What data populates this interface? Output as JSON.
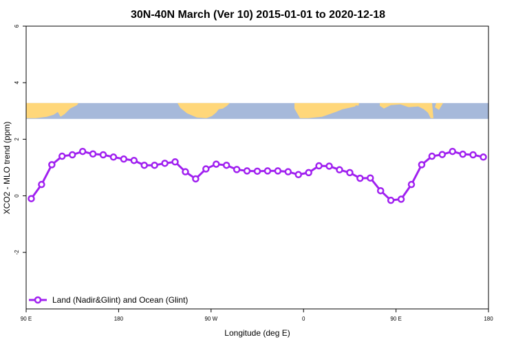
{
  "chart_data": {
    "type": "line",
    "title": "30N-40N March (Ver 10)   2015-01-01 to 2020-12-18",
    "xlabel": "Longitude (deg E)",
    "ylabel": "XCO2 - MLO trend (ppm)",
    "xlim": [
      90,
      540
    ],
    "ylim": [
      -4,
      6
    ],
    "x_ticks": [
      {
        "value": 90,
        "label": "90 E"
      },
      {
        "value": 180,
        "label": "180"
      },
      {
        "value": 270,
        "label": "90 W"
      },
      {
        "value": 360,
        "label": "0"
      },
      {
        "value": 450,
        "label": "90 E"
      },
      {
        "value": 540,
        "label": "180"
      }
    ],
    "y_ticks": [
      {
        "value": -2,
        "label": "-2"
      },
      {
        "value": 0,
        "label": "0"
      },
      {
        "value": 2,
        "label": "2"
      },
      {
        "value": 4,
        "label": "4"
      },
      {
        "value": 6,
        "label": "6"
      }
    ],
    "grid": false,
    "legend_position": "bottom-left",
    "series": [
      {
        "name": "Land (Nadir&Glint) and Ocean (Glint)",
        "color": "#a020f0",
        "marker": "open-circle",
        "x": [
          95,
          105,
          115,
          125,
          135,
          145,
          155,
          165,
          175,
          185,
          195,
          205,
          215,
          225,
          235,
          245,
          255,
          265,
          275,
          285,
          295,
          305,
          315,
          325,
          335,
          345,
          355,
          365,
          375,
          385,
          395,
          405,
          415,
          425,
          435,
          445,
          455,
          465,
          475,
          485,
          495,
          505,
          515,
          525,
          535
        ],
        "y": [
          -0.1,
          0.4,
          1.1,
          1.4,
          1.45,
          1.57,
          1.48,
          1.45,
          1.37,
          1.3,
          1.25,
          1.08,
          1.08,
          1.15,
          1.2,
          0.85,
          0.6,
          0.95,
          1.12,
          1.08,
          0.93,
          0.88,
          0.87,
          0.88,
          0.88,
          0.85,
          0.75,
          0.82,
          1.06,
          1.05,
          0.92,
          0.82,
          0.62,
          0.63,
          0.18,
          -0.16,
          -0.12,
          0.4,
          1.1,
          1.4,
          1.46,
          1.57,
          1.47,
          1.45,
          1.37
        ]
      }
    ],
    "map_strip": {
      "y_range": [
        2.72,
        3.28
      ],
      "ocean_color": "#a6b9da",
      "land_color": "#ffd77a"
    }
  }
}
